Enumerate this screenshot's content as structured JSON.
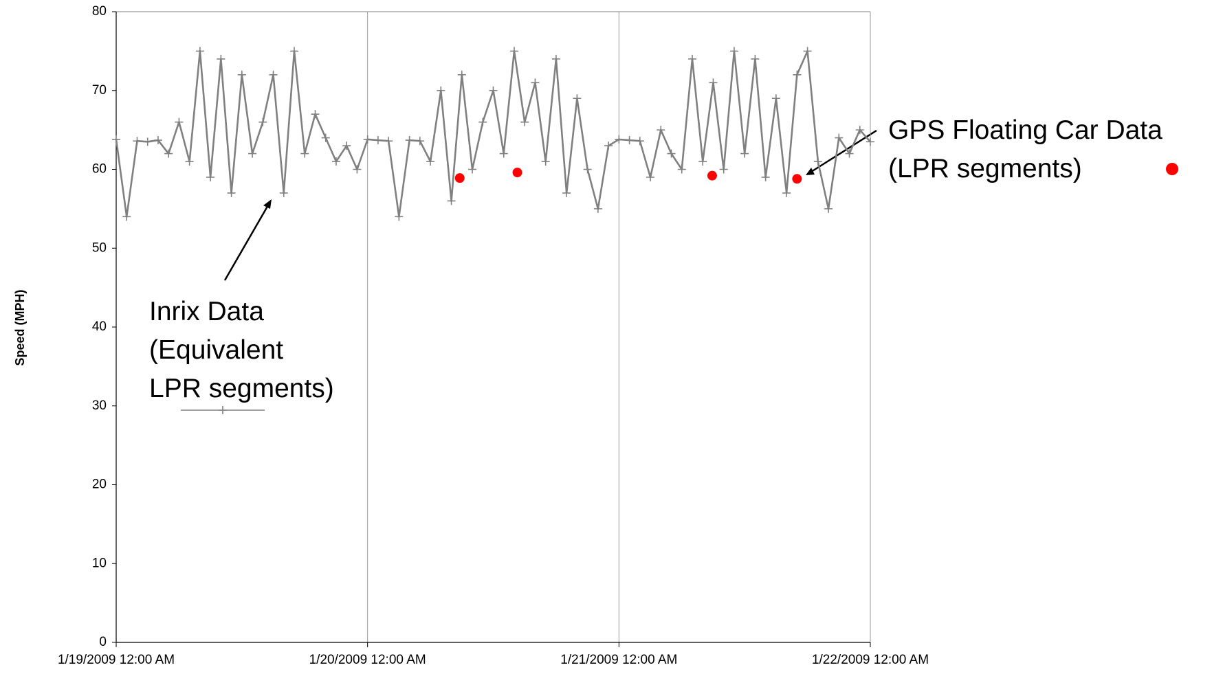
{
  "chart_data": {
    "type": "line",
    "y_label": "Speed (MPH)",
    "xlim": [
      "2009-01-19T00:00",
      "2009-01-22T00:00"
    ],
    "xticks": [
      {
        "value": "2009-01-19T00:00",
        "label": "1/19/2009 12:00 AM"
      },
      {
        "value": "2009-01-20T00:00",
        "label": "1/20/2009 12:00 AM"
      },
      {
        "value": "2009-01-21T00:00",
        "label": "1/21/2009 12:00 AM"
      },
      {
        "value": "2009-01-22T00:00",
        "label": "1/22/2009 12:00 AM"
      }
    ],
    "ylim": [
      0,
      80
    ],
    "yticks": [
      0,
      10,
      20,
      30,
      40,
      50,
      60,
      70,
      80
    ],
    "x_grid": true,
    "series": [
      {
        "name": "Inrix Data\n(Equivalent\nLPR segments)",
        "color": "#808080",
        "marker": "+",
        "type": "line",
        "x": [
          "2009-01-19T00:00",
          "2009-01-19T01:00",
          "2009-01-19T02:00",
          "2009-01-19T03:00",
          "2009-01-19T04:00",
          "2009-01-19T05:00",
          "2009-01-19T06:00",
          "2009-01-19T07:00",
          "2009-01-19T08:00",
          "2009-01-19T09:00",
          "2009-01-19T10:00",
          "2009-01-19T11:00",
          "2009-01-19T12:00",
          "2009-01-19T13:00",
          "2009-01-19T14:00",
          "2009-01-19T15:00",
          "2009-01-19T16:00",
          "2009-01-19T17:00",
          "2009-01-19T18:00",
          "2009-01-19T19:00",
          "2009-01-19T20:00",
          "2009-01-19T21:00",
          "2009-01-19T22:00",
          "2009-01-19T23:00",
          "2009-01-20T00:00",
          "2009-01-20T01:00",
          "2009-01-20T02:00",
          "2009-01-20T03:00",
          "2009-01-20T04:00",
          "2009-01-20T05:00",
          "2009-01-20T06:00",
          "2009-01-20T07:00",
          "2009-01-20T08:00",
          "2009-01-20T09:00",
          "2009-01-20T10:00",
          "2009-01-20T11:00",
          "2009-01-20T12:00",
          "2009-01-20T13:00",
          "2009-01-20T14:00",
          "2009-01-20T15:00",
          "2009-01-20T16:00",
          "2009-01-20T17:00",
          "2009-01-20T18:00",
          "2009-01-20T19:00",
          "2009-01-20T20:00",
          "2009-01-20T21:00",
          "2009-01-20T22:00",
          "2009-01-20T23:00",
          "2009-01-21T00:00",
          "2009-01-21T01:00",
          "2009-01-21T02:00",
          "2009-01-21T03:00",
          "2009-01-21T04:00",
          "2009-01-21T05:00",
          "2009-01-21T06:00",
          "2009-01-21T07:00",
          "2009-01-21T08:00",
          "2009-01-21T09:00",
          "2009-01-21T10:00",
          "2009-01-21T11:00",
          "2009-01-21T12:00",
          "2009-01-21T13:00",
          "2009-01-21T14:00",
          "2009-01-21T15:00",
          "2009-01-21T16:00",
          "2009-01-21T17:00",
          "2009-01-21T18:00",
          "2009-01-21T19:00",
          "2009-01-21T20:00",
          "2009-01-21T21:00",
          "2009-01-21T22:00",
          "2009-01-21T23:00",
          "2009-01-22T00:00"
        ],
        "values": [
          63.8,
          54,
          63.6,
          63.5,
          63.7,
          62,
          66,
          61,
          75,
          59,
          74,
          57,
          72,
          62,
          66,
          72,
          57,
          75,
          62,
          67,
          64,
          61,
          63,
          60,
          63.8,
          63.7,
          63.6,
          54,
          63.7,
          63.6,
          61,
          70,
          56,
          72,
          60,
          66,
          70,
          62,
          75,
          66,
          71,
          61,
          74,
          57,
          69,
          60,
          55,
          63,
          63.8,
          63.7,
          63.6,
          59,
          65,
          62,
          60,
          74,
          61,
          71,
          60,
          75,
          62,
          74,
          59,
          69,
          57,
          72,
          75,
          61,
          55,
          64,
          62,
          65,
          63.5
        ]
      },
      {
        "name": "GPS Floating Car Data\n(LPR segments)",
        "color": "#ff0000",
        "type": "scatter",
        "x": [
          "2009-01-20T08:48",
          "2009-01-20T14:18",
          "2009-01-21T08:54",
          "2009-01-21T17:00"
        ],
        "values": [
          58.9,
          59.6,
          59.2,
          58.8
        ]
      }
    ]
  }
}
